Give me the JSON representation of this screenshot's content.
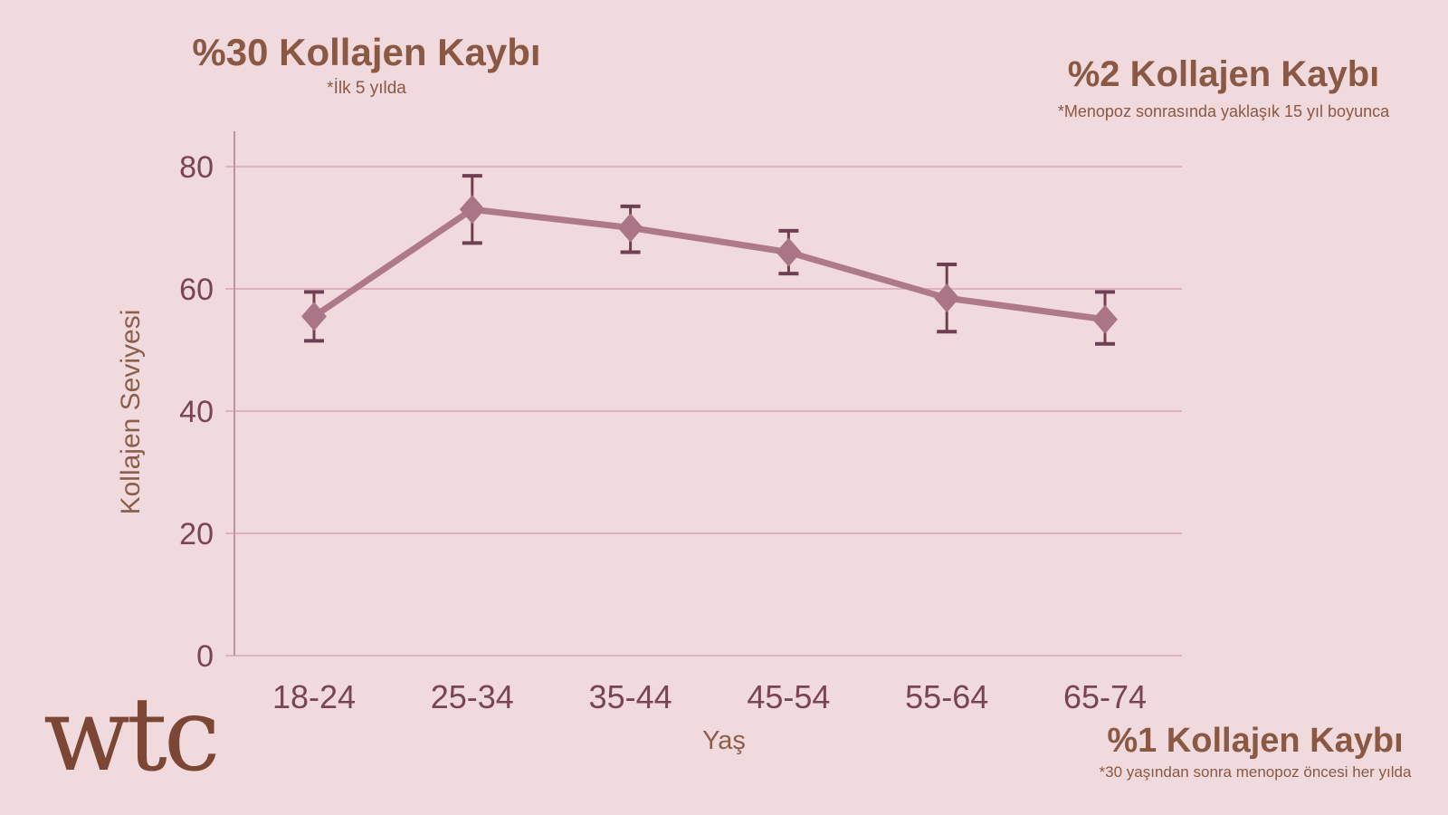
{
  "colors": {
    "background": "#f1dade",
    "heading_brown": "#8a5843",
    "logo_brown": "#7b4734"
  },
  "logo": {
    "text": "wtc"
  },
  "annotations": {
    "top_left": {
      "title": "%30 Kollajen Kaybı",
      "subtitle": "*İlk 5 yılda"
    },
    "top_right": {
      "title": "%2 Kollajen Kaybı",
      "subtitle": "*Menopoz sonrasında yaklaşık 15 yıl boyunca"
    },
    "bottom_right": {
      "title": "%1 Kollajen Kaybı",
      "subtitle": "*30 yaşından sonra menopoz öncesi her yılda"
    }
  },
  "chart_data": {
    "type": "line",
    "title": "",
    "xlabel": "Yaş",
    "ylabel": "Kollajen Seviyesi",
    "categories": [
      "18-24",
      "25-34",
      "35-44",
      "45-54",
      "55-64",
      "65-74"
    ],
    "series": [
      {
        "name": "Kollajen Seviyesi",
        "values": [
          55.5,
          73,
          70,
          66,
          58.5,
          55
        ],
        "error_plus": [
          4,
          5.5,
          3.5,
          3.5,
          5.5,
          4.5
        ],
        "error_minus": [
          4,
          5.5,
          4,
          3.5,
          5.5,
          4
        ]
      }
    ],
    "yticks": [
      0,
      20,
      40,
      60,
      80
    ],
    "ylim": [
      0,
      86
    ],
    "grid": true,
    "legend": false,
    "marker": "diamond",
    "colors": {
      "line": "#ae7a8a",
      "marker": "#aa7687",
      "error_bar": "#6f4053",
      "grid": "#d5a8b4",
      "axis": "#c392a1",
      "tick_label": "#7a4457",
      "axis_title": "#8b5f4b"
    }
  }
}
